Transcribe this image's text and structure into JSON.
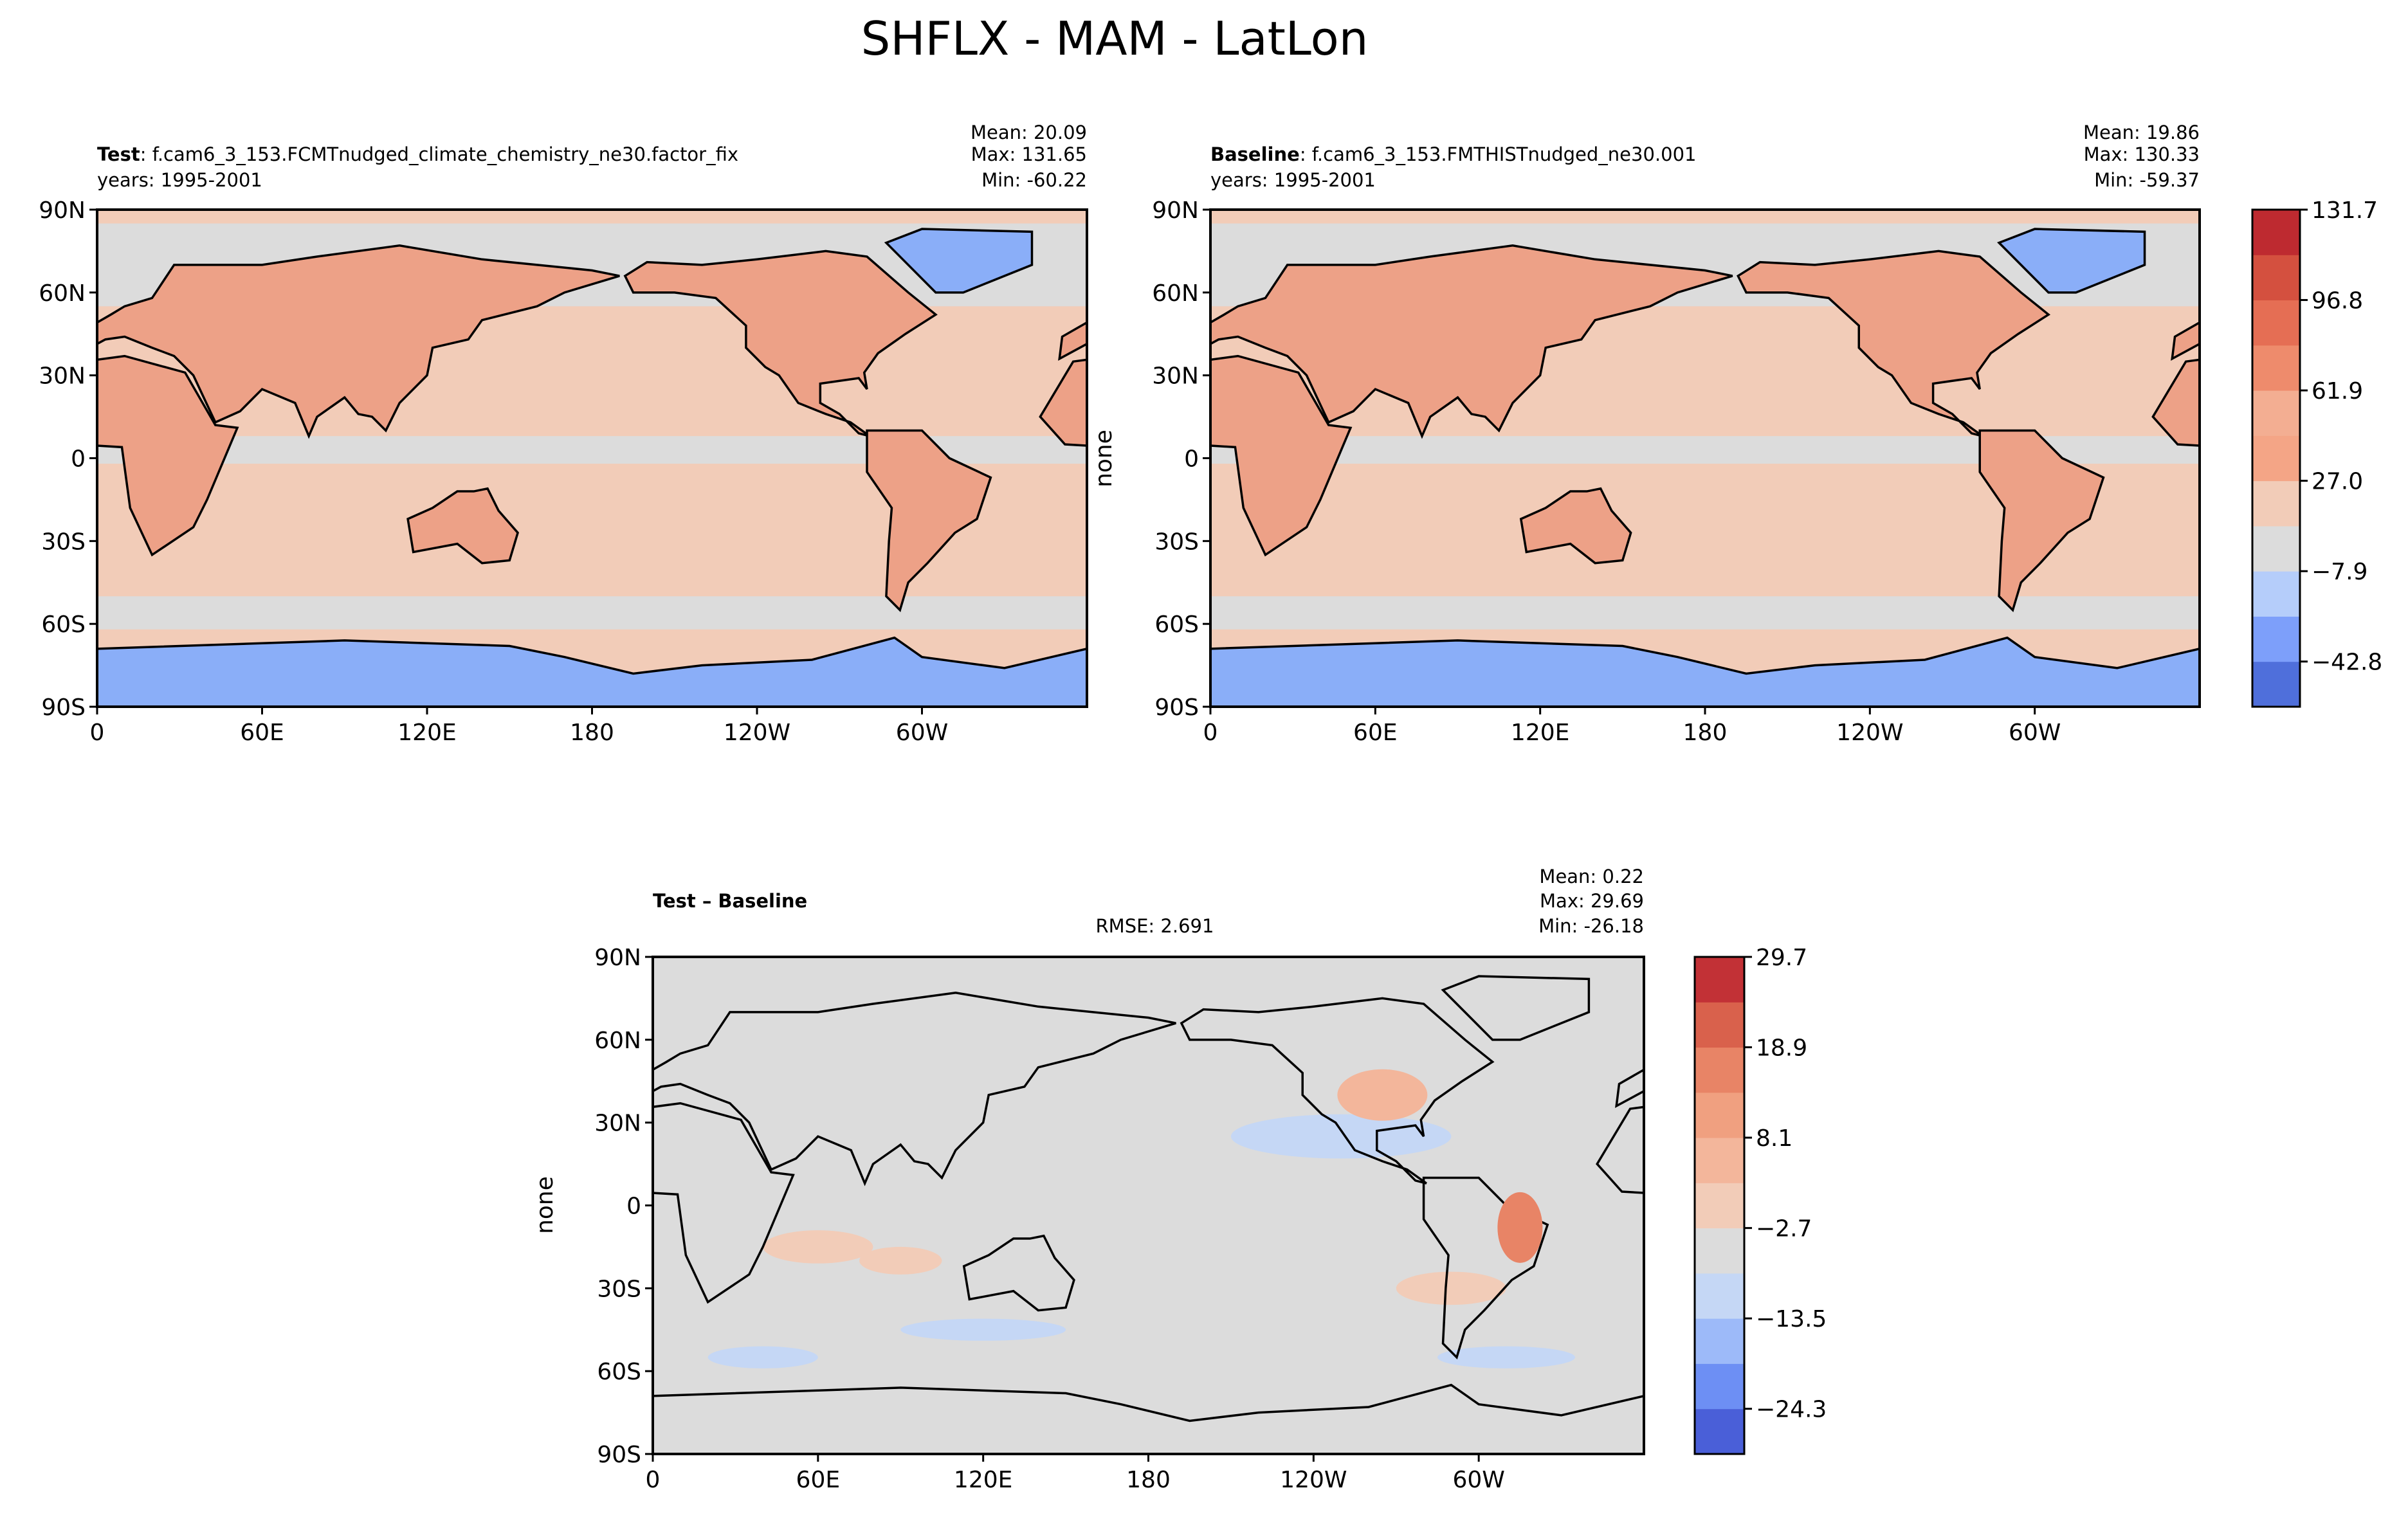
{
  "title": "SHFLX - MAM - LatLon",
  "lon_lim": [
    0,
    360
  ],
  "lat_lim": [
    -90,
    90
  ],
  "lon_ticks": [
    {
      "value": 0,
      "label": "0"
    },
    {
      "value": 60,
      "label": "60E"
    },
    {
      "value": 120,
      "label": "120E"
    },
    {
      "value": 180,
      "label": "180"
    },
    {
      "value": 240,
      "label": "120W"
    },
    {
      "value": 300,
      "label": "60W"
    }
  ],
  "lat_ticks": [
    {
      "value": 90,
      "label": "90N"
    },
    {
      "value": 60,
      "label": "60N"
    },
    {
      "value": 30,
      "label": "30N"
    },
    {
      "value": 0,
      "label": "0"
    },
    {
      "value": -30,
      "label": "30S"
    },
    {
      "value": -60,
      "label": "60S"
    },
    {
      "value": -90,
      "label": "90S"
    }
  ],
  "panels": [
    {
      "name": "Test",
      "label": ": f.cam6_3_153.FCMTnudged_climate_chemistry_ne30.factor_fix",
      "years": "years: 1995-2001",
      "stats": [
        "Mean: 20.09",
        "Max: 131.65",
        "Min: -60.22"
      ]
    },
    {
      "name": "Baseline",
      "label": ": f.cam6_3_153.FMTHISTnudged_ne30.001",
      "years": "years: 1995-2001",
      "stats": [
        "Mean: 19.86",
        "Max: 130.33",
        "Min: -59.37"
      ],
      "ylabel": "none"
    },
    {
      "name": "Test – Baseline",
      "rmse": "RMSE: 2.691",
      "stats": [
        "Mean:  0.22",
        "Max: 29.69",
        "Min: -26.18"
      ],
      "ylabel": "none"
    }
  ],
  "colorbars": [
    {
      "lim": [
        -60.25,
        131.7
      ],
      "colors": [
        "#4f6fdb",
        "#7d9ffa",
        "#b5cdfa",
        "#dcdcdc",
        "#f2ccb8",
        "#f4a586",
        "#f3ae92",
        "#ee8b6c",
        "#e56e54",
        "#d4503f",
        "#be2a30"
      ],
      "ticks": [
        {
          "value": 131.7,
          "label": "131.7"
        },
        {
          "value": 96.8,
          "label": "96.8"
        },
        {
          "value": 61.9,
          "label": "61.9"
        },
        {
          "value": 27.0,
          "label": "27.0"
        },
        {
          "value": -7.9,
          "label": "−7.9"
        },
        {
          "value": -42.8,
          "label": "−42.8"
        }
      ]
    },
    {
      "lim": [
        -29.7,
        29.7
      ],
      "colors": [
        "#4a5fd8",
        "#6d8ff4",
        "#9dbaf9",
        "#c5d7f5",
        "#dcdcdc",
        "#f2ccb8",
        "#f3b69b",
        "#f0a080",
        "#e88466",
        "#d9614c",
        "#c23136"
      ],
      "ticks": [
        {
          "value": 29.7,
          "label": "29.7"
        },
        {
          "value": 18.9,
          "label": "18.9"
        },
        {
          "value": 8.1,
          "label": "8.1"
        },
        {
          "value": -2.7,
          "label": "−2.7"
        },
        {
          "value": -13.5,
          "label": "−13.5"
        },
        {
          "value": -24.3,
          "label": "−24.3"
        }
      ]
    }
  ]
}
